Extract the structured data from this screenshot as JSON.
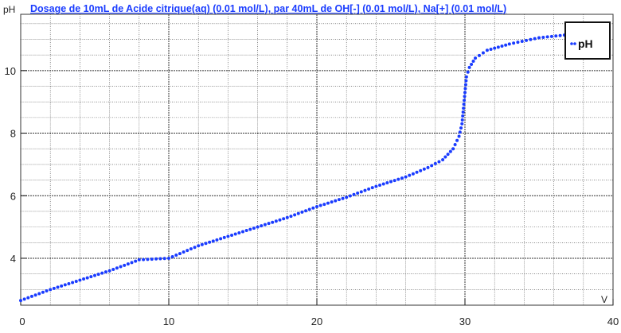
{
  "chart_data": {
    "type": "scatter",
    "title": "Dosage de 10mL de Acide citrique(aq) (0.01 mol/L),  par 40mL  de OH[-] (0.01 mol/L), Na[+] (0.01 mol/L)",
    "xlabel": "V",
    "ylabel": "pH",
    "xlim": [
      0,
      40
    ],
    "ylim": [
      2.5,
      11.8
    ],
    "xticks": [
      0,
      10,
      20,
      30,
      40
    ],
    "yticks": [
      4,
      6,
      8,
      10
    ],
    "grid": true,
    "legend": {
      "position": "top-right",
      "entries": [
        "pH"
      ]
    },
    "series": [
      {
        "name": "pH",
        "color": "#1a3cff",
        "points": [
          [
            0,
            2.65
          ],
          [
            2,
            3.0
          ],
          [
            4,
            3.3
          ],
          [
            6,
            3.6
          ],
          [
            8,
            3.95
          ],
          [
            10,
            4.0
          ],
          [
            12,
            4.4
          ],
          [
            14,
            4.7
          ],
          [
            16,
            5.0
          ],
          [
            18,
            5.3
          ],
          [
            20,
            5.65
          ],
          [
            22,
            5.95
          ],
          [
            24,
            6.3
          ],
          [
            26,
            6.6
          ],
          [
            27.5,
            6.9
          ],
          [
            28.5,
            7.15
          ],
          [
            29.2,
            7.5
          ],
          [
            29.6,
            7.9
          ],
          [
            29.8,
            8.3
          ],
          [
            29.9,
            8.8
          ],
          [
            30.0,
            9.3
          ],
          [
            30.1,
            9.8
          ],
          [
            30.3,
            10.1
          ],
          [
            30.7,
            10.4
          ],
          [
            31.5,
            10.65
          ],
          [
            33,
            10.85
          ],
          [
            35,
            11.05
          ],
          [
            37,
            11.15
          ]
        ]
      }
    ]
  }
}
